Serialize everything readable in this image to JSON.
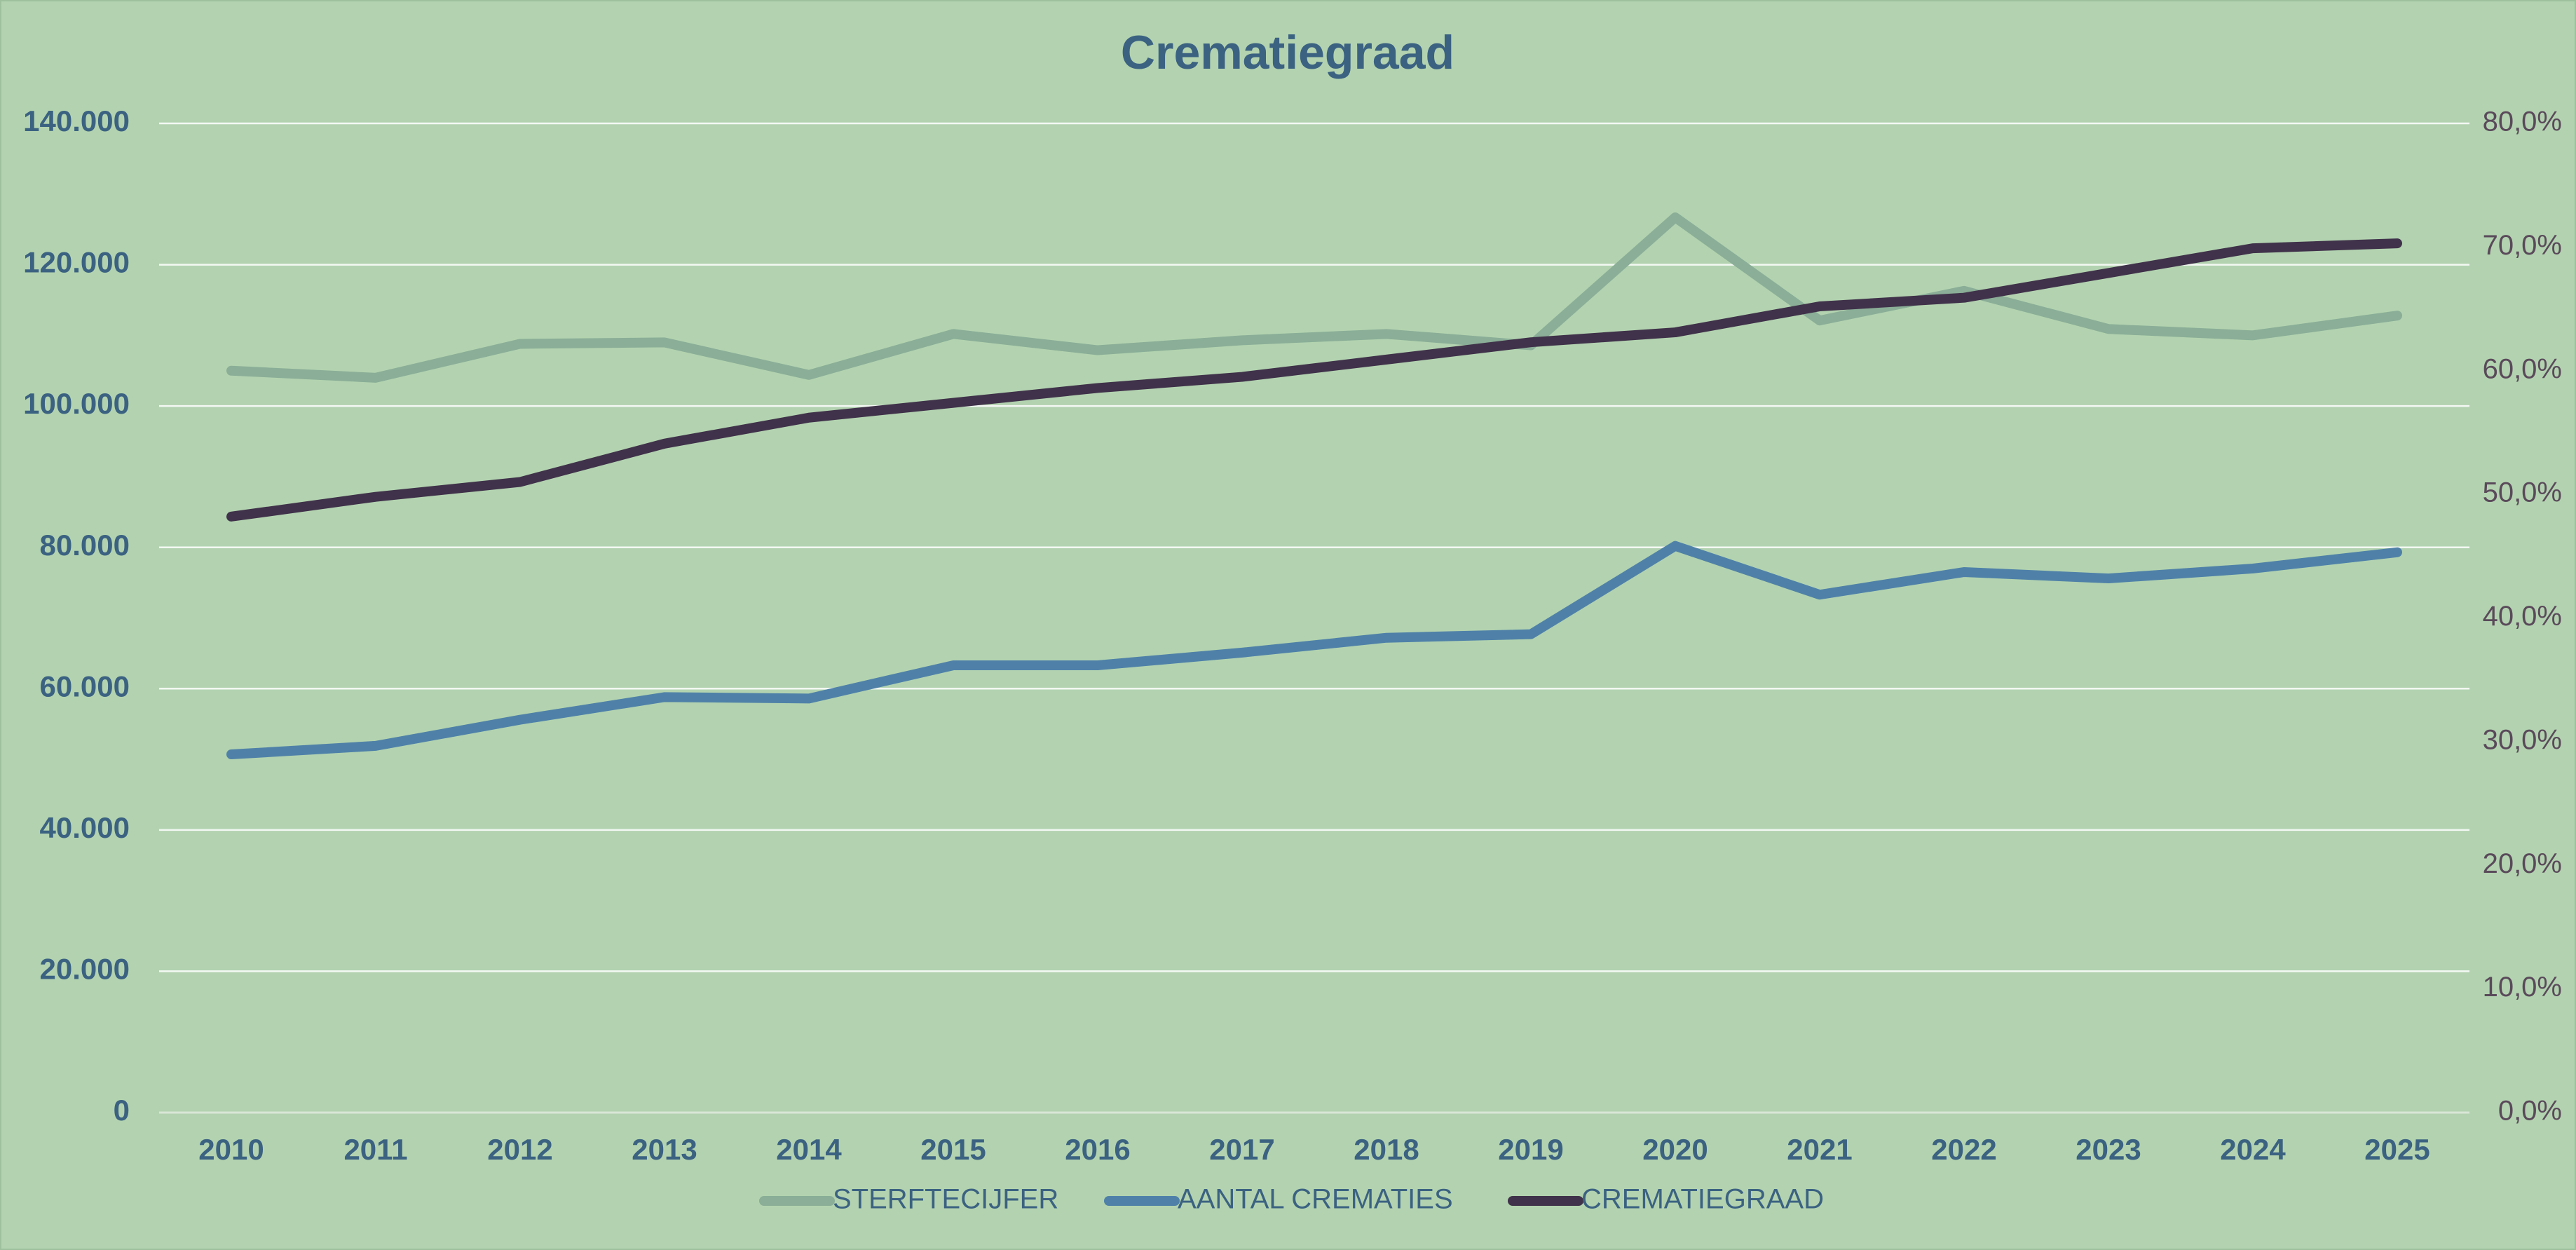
{
  "chart_data": {
    "type": "line",
    "title": "Crematiegraad",
    "categories": [
      "2010",
      "2011",
      "2012",
      "2013",
      "2014",
      "2015",
      "2016",
      "2017",
      "2018",
      "2019",
      "2020",
      "2021",
      "2022",
      "2023",
      "2024",
      "2025"
    ],
    "series": [
      {
        "name": "STERFTECIJFER",
        "color": "#8aae97",
        "values": [
          105000,
          104000,
          108800,
          109000,
          104400,
          110200,
          107900,
          109300,
          110200,
          108600,
          126700,
          112100,
          116300,
          110900,
          110000,
          112800
        ]
      },
      {
        "name": "AANTAL CREMATIES",
        "color": "#4f81a8",
        "values": [
          50700,
          51900,
          55600,
          58800,
          58600,
          63300,
          63300,
          65100,
          67200,
          67700,
          80200,
          73300,
          76500,
          75600,
          77000,
          79300
        ]
      },
      {
        "name": "CREMATIEGRAAD",
        "color": "#40324a",
        "axis": "y2",
        "values": [
          48.2,
          49.8,
          51.0,
          54.1,
          56.2,
          57.4,
          58.6,
          59.5,
          60.9,
          62.3,
          63.1,
          65.2,
          65.9,
          67.9,
          69.9,
          70.3
        ]
      }
    ],
    "ylim": [
      0,
      140000
    ],
    "yticks": [
      0,
      {
        "value": 20000,
        "label": "20.000"
      },
      {
        "value": 40000,
        "label": "40.000"
      },
      {
        "value": 60000,
        "label": "60.000"
      },
      {
        "value": 80000,
        "label": "80.000"
      },
      {
        "value": 100000,
        "label": "100.000"
      },
      {
        "value": 120000,
        "label": "120.000"
      },
      {
        "value": 140000,
        "label": "140.000"
      }
    ],
    "y2lim": [
      0,
      80
    ],
    "y2ticks": [
      {
        "value": 0,
        "label": "0,0%"
      },
      {
        "value": 10,
        "label": "10,0%"
      },
      {
        "value": 20,
        "label": "20,0%"
      },
      {
        "value": 30,
        "label": "30,0%"
      },
      {
        "value": 40,
        "label": "40,0%"
      },
      {
        "value": 50,
        "label": "50,0%"
      },
      {
        "value": 60,
        "label": "60,0%"
      },
      {
        "value": 70,
        "label": "70,0%"
      },
      {
        "value": 80,
        "label": "80,0%"
      }
    ],
    "grid": true,
    "legend": "bottom"
  }
}
